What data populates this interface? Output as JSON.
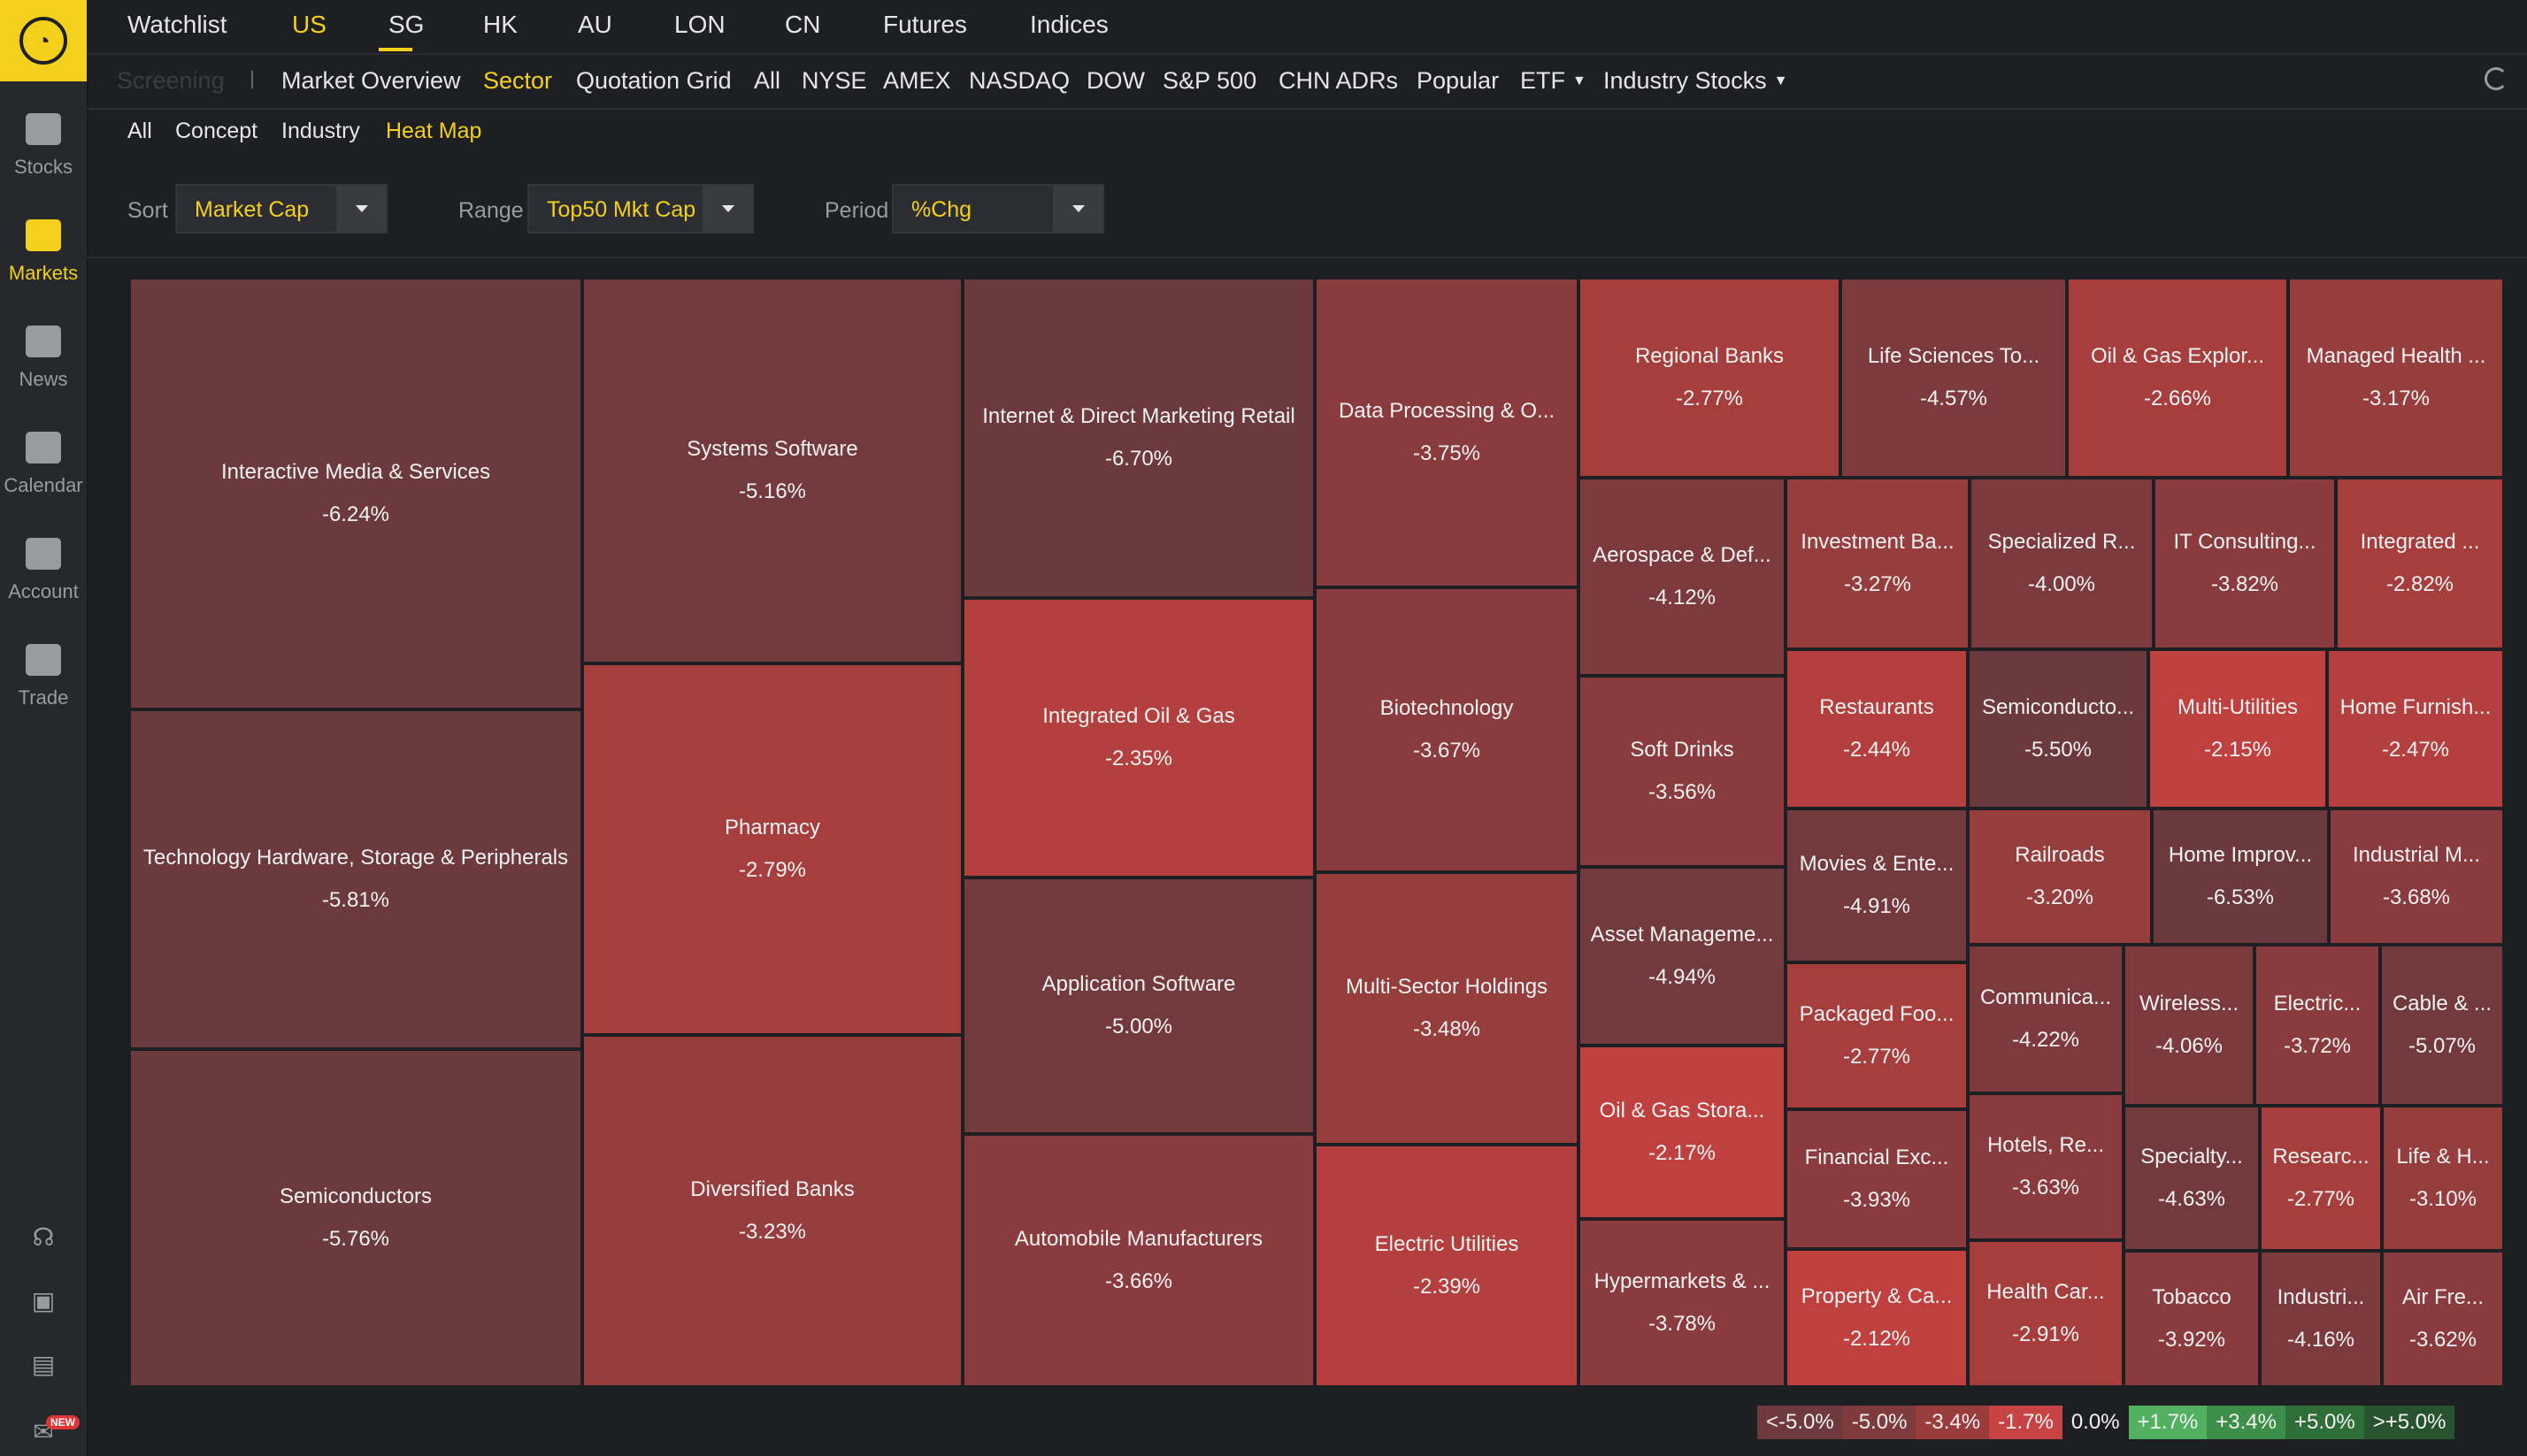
{
  "top_tabs": [
    "Watchlist",
    "US",
    "SG",
    "HK",
    "AU",
    "LON",
    "CN",
    "Futures",
    "Indices"
  ],
  "active_top_tab": "US",
  "subnav": {
    "screening": "Screening",
    "items": [
      "Market Overview",
      "Sector",
      "Quotation Grid",
      "All",
      "NYSE",
      "AMEX",
      "NASDAQ",
      "DOW",
      "S&P 500",
      "CHN ADRs",
      "Popular",
      "ETF",
      "Industry Stocks"
    ],
    "active": "Sector"
  },
  "subsub": {
    "items": [
      "All",
      "Concept",
      "Industry",
      "Heat Map"
    ],
    "active": "Heat Map"
  },
  "filters": {
    "sort_label": "Sort",
    "sort_value": "Market Cap",
    "range_label": "Range",
    "range_value": "Top50 Mkt Cap",
    "period_label": "Period",
    "period_value": "%Chg"
  },
  "sidebar": {
    "items": [
      {
        "label": "Stocks",
        "icon": "chart-icon"
      },
      {
        "label": "Markets",
        "icon": "markets-icon"
      },
      {
        "label": "News",
        "icon": "news-icon"
      },
      {
        "label": "Calendar",
        "icon": "calendar-icon"
      },
      {
        "label": "Account",
        "icon": "wallet-icon"
      },
      {
        "label": "Trade",
        "icon": "trade-icon"
      }
    ],
    "active": "Markets",
    "bottom_icons": [
      "headset-icon",
      "gift-icon",
      "chat-icon",
      "mail-icon"
    ],
    "new_badge": "NEW"
  },
  "colors": {
    "accent": "#f3d01b",
    "sidebar_bg": "#27282c",
    "page_bg": "#1e1f23"
  },
  "heatmap": [
    {
      "name": "Interactive Media & Services",
      "pct": "-6.24%"
    },
    {
      "name": "Technology Hardware, Storage & Peripherals",
      "pct": "-5.81%"
    },
    {
      "name": "Semiconductors",
      "pct": "-5.76%"
    },
    {
      "name": "Systems Software",
      "pct": "-5.16%"
    },
    {
      "name": "Pharmacy",
      "pct": "-2.79%"
    },
    {
      "name": "Diversified Banks",
      "pct": "-3.23%"
    },
    {
      "name": "Internet & Direct Marketing Retail",
      "pct": "-6.70%"
    },
    {
      "name": "Integrated Oil & Gas",
      "pct": "-2.35%"
    },
    {
      "name": "Application Software",
      "pct": "-5.00%"
    },
    {
      "name": "Automobile Manufacturers",
      "pct": "-3.66%"
    },
    {
      "name": "Data Processing & O...",
      "pct": "-3.75%"
    },
    {
      "name": "Biotechnology",
      "pct": "-3.67%"
    },
    {
      "name": "Multi-Sector Holdings",
      "pct": "-3.48%"
    },
    {
      "name": "Electric Utilities",
      "pct": "-2.39%"
    },
    {
      "name": "Regional Banks",
      "pct": "-2.77%"
    },
    {
      "name": "Life Sciences To...",
      "pct": "-4.57%"
    },
    {
      "name": "Oil & Gas Explor...",
      "pct": "-2.66%"
    },
    {
      "name": "Managed Health ...",
      "pct": "-3.17%"
    },
    {
      "name": "Aerospace & Def...",
      "pct": "-4.12%"
    },
    {
      "name": "Soft Drinks",
      "pct": "-3.56%"
    },
    {
      "name": "Asset Manageme...",
      "pct": "-4.94%"
    },
    {
      "name": "Oil & Gas Stora...",
      "pct": "-2.17%"
    },
    {
      "name": "Hypermarkets & ...",
      "pct": "-3.78%"
    },
    {
      "name": "Investment Ba...",
      "pct": "-3.27%"
    },
    {
      "name": "Specialized R...",
      "pct": "-4.00%"
    },
    {
      "name": "IT Consulting...",
      "pct": "-3.82%"
    },
    {
      "name": "Integrated ...",
      "pct": "-2.82%"
    },
    {
      "name": "Restaurants",
      "pct": "-2.44%"
    },
    {
      "name": "Semiconducto...",
      "pct": "-5.50%"
    },
    {
      "name": "Multi-Utilities",
      "pct": "-2.15%"
    },
    {
      "name": "Home Furnish...",
      "pct": "-2.47%"
    },
    {
      "name": "Movies & Ente...",
      "pct": "-4.91%"
    },
    {
      "name": "Railroads",
      "pct": "-3.20%"
    },
    {
      "name": "Home Improv...",
      "pct": "-6.53%"
    },
    {
      "name": "Industrial M...",
      "pct": "-3.68%"
    },
    {
      "name": "Packaged Foo...",
      "pct": "-2.77%"
    },
    {
      "name": "Communica...",
      "pct": "-4.22%"
    },
    {
      "name": "Wireless...",
      "pct": "-4.06%"
    },
    {
      "name": "Electric...",
      "pct": "-3.72%"
    },
    {
      "name": "Cable & ...",
      "pct": "-5.07%"
    },
    {
      "name": "Financial Exc...",
      "pct": "-3.93%"
    },
    {
      "name": "Hotels, Re...",
      "pct": "-3.63%"
    },
    {
      "name": "Specialty...",
      "pct": "-4.63%"
    },
    {
      "name": "Researc...",
      "pct": "-2.77%"
    },
    {
      "name": "Life & H...",
      "pct": "-3.10%"
    },
    {
      "name": "Property & Ca...",
      "pct": "-2.12%"
    },
    {
      "name": "Health Car...",
      "pct": "-2.91%"
    },
    {
      "name": "Tobacco",
      "pct": "-3.92%"
    },
    {
      "name": "Industri...",
      "pct": "-4.16%"
    },
    {
      "name": "Air Fre...",
      "pct": "-3.62%"
    }
  ],
  "legend": [
    {
      "label": "<-5.0%",
      "color": "#6e3a3e"
    },
    {
      "label": "-5.0%",
      "color": "#7e3a3d"
    },
    {
      "label": "-3.4%",
      "color": "#9b3c3c"
    },
    {
      "label": "-1.7%",
      "color": "#c84444"
    },
    {
      "label": "0.0%",
      "color": "#1e1f23"
    },
    {
      "label": "+1.7%",
      "color": "#52b160"
    },
    {
      "label": "+3.4%",
      "color": "#3c8e48"
    },
    {
      "label": "+5.0%",
      "color": "#2f6e39"
    },
    {
      "label": ">+5.0%",
      "color": "#27532e"
    }
  ]
}
